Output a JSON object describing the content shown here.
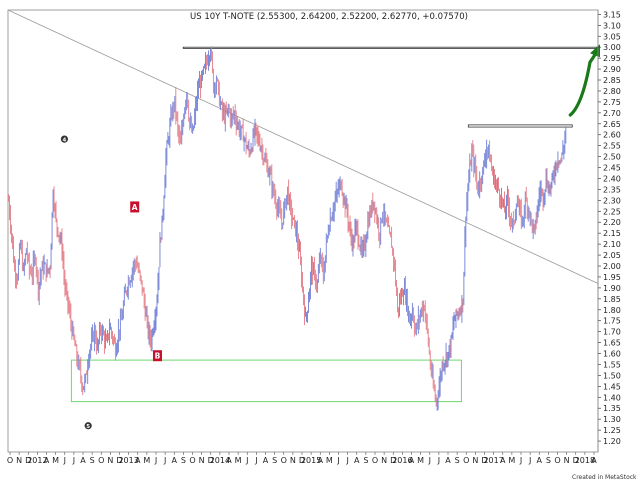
{
  "chart_data": {
    "type": "ohlc",
    "title": "US 10Y T-NOTE (2.55300, 2.64200, 2.52200, 2.62770, +0.07570)",
    "credit": "Created in MetaStock",
    "y_axis": {
      "position": "right",
      "ylim": [
        1.15,
        3.17
      ],
      "ticks": [
        3.15,
        3.1,
        3.05,
        3.0,
        2.95,
        2.9,
        2.85,
        2.8,
        2.75,
        2.7,
        2.65,
        2.6,
        2.55,
        2.5,
        2.45,
        2.4,
        2.35,
        2.3,
        2.25,
        2.2,
        2.15,
        2.1,
        2.05,
        2.0,
        1.95,
        1.9,
        1.85,
        1.8,
        1.75,
        1.7,
        1.65,
        1.6,
        1.55,
        1.5,
        1.45,
        1.4,
        1.35,
        1.3,
        1.25,
        1.2
      ],
      "tick_labels": [
        "3.15",
        "3.10",
        "3.05",
        "3.00",
        "2.95",
        "2.90",
        "2.85",
        "2.80",
        "2.75",
        "2.70",
        "2.65",
        "2.60",
        "2.55",
        "2.50",
        "2.45",
        "2.40",
        "2.35",
        "2.30",
        "2.25",
        "2.20",
        "2.15",
        "2.10",
        "2.05",
        "2.00",
        "1.95",
        "1.90",
        "1.85",
        "1.80",
        "1.75",
        "1.70",
        "1.65",
        "1.60",
        "1.55",
        "1.50",
        "1.45",
        "1.40",
        "1.35",
        "1.30",
        "1.25",
        "1.20"
      ]
    },
    "x_axis_labels": [
      "O",
      "N",
      "D",
      "2012",
      "A",
      "M",
      "J",
      "J",
      "A",
      "S",
      "O",
      "N",
      "D",
      "2013",
      "A",
      "M",
      "J",
      "J",
      "A",
      "S",
      "O",
      "N",
      "D",
      "2014",
      "A",
      "M",
      "J",
      "J",
      "A",
      "S",
      "O",
      "N",
      "D",
      "2015",
      "A",
      "M",
      "J",
      "J",
      "A",
      "S",
      "O",
      "N",
      "D",
      "2016",
      "A",
      "M",
      "J",
      "J",
      "A",
      "S",
      "O",
      "N",
      "D",
      "2017",
      "A",
      "M",
      "J",
      "J",
      "A",
      "S",
      "O",
      "N",
      "D",
      "2018",
      "A"
    ],
    "series": [
      {
        "points": [
          [
            0,
            2.3
          ],
          [
            3,
            2.15
          ],
          [
            6,
            1.98
          ],
          [
            9,
            1.96
          ],
          [
            12,
            2.1
          ],
          [
            15,
            1.97
          ],
          [
            18,
            2.08
          ],
          [
            21,
            1.98
          ],
          [
            24,
            1.97
          ],
          [
            27,
            2.05
          ],
          [
            30,
            1.9
          ],
          [
            33,
            1.98
          ],
          [
            36,
            2.0
          ],
          [
            39,
            1.97
          ],
          [
            42,
            2.0
          ],
          [
            45,
            2.35
          ],
          [
            48,
            2.2
          ],
          [
            51,
            2.15
          ],
          [
            54,
            2.08
          ],
          [
            57,
            1.9
          ],
          [
            60,
            1.83
          ],
          [
            63,
            1.74
          ],
          [
            66,
            1.66
          ],
          [
            69,
            1.58
          ],
          [
            72,
            1.52
          ],
          [
            75,
            1.45
          ],
          [
            78,
            1.48
          ],
          [
            81,
            1.6
          ],
          [
            84,
            1.65
          ],
          [
            87,
            1.7
          ],
          [
            90,
            1.62
          ],
          [
            93,
            1.72
          ],
          [
            96,
            1.68
          ],
          [
            99,
            1.64
          ],
          [
            102,
            1.72
          ],
          [
            105,
            1.68
          ],
          [
            108,
            1.62
          ],
          [
            111,
            1.7
          ],
          [
            114,
            1.75
          ],
          [
            117,
            1.85
          ],
          [
            120,
            1.92
          ],
          [
            123,
            1.95
          ],
          [
            126,
            2.0
          ],
          [
            129,
            2.02
          ],
          [
            132,
            1.96
          ],
          [
            135,
            1.9
          ],
          [
            138,
            1.8
          ],
          [
            141,
            1.7
          ],
          [
            144,
            1.66
          ],
          [
            147,
            1.75
          ],
          [
            150,
            1.85
          ],
          [
            153,
            2.1
          ],
          [
            156,
            2.25
          ],
          [
            159,
            2.5
          ],
          [
            162,
            2.6
          ],
          [
            165,
            2.7
          ],
          [
            168,
            2.75
          ],
          [
            171,
            2.62
          ],
          [
            174,
            2.55
          ],
          [
            177,
            2.7
          ],
          [
            180,
            2.8
          ],
          [
            183,
            2.65
          ],
          [
            186,
            2.6
          ],
          [
            189,
            2.72
          ],
          [
            192,
            2.82
          ],
          [
            195,
            2.85
          ],
          [
            198,
            2.9
          ],
          [
            201,
            2.95
          ],
          [
            204,
            3.0
          ],
          [
            207,
            2.82
          ],
          [
            210,
            2.86
          ],
          [
            213,
            2.76
          ],
          [
            216,
            2.7
          ],
          [
            219,
            2.68
          ],
          [
            222,
            2.72
          ],
          [
            225,
            2.67
          ],
          [
            228,
            2.7
          ],
          [
            231,
            2.65
          ],
          [
            234,
            2.62
          ],
          [
            237,
            2.6
          ],
          [
            240,
            2.55
          ],
          [
            243,
            2.52
          ],
          [
            246,
            2.56
          ],
          [
            249,
            2.62
          ],
          [
            252,
            2.58
          ],
          [
            255,
            2.55
          ],
          [
            258,
            2.5
          ],
          [
            261,
            2.45
          ],
          [
            264,
            2.42
          ],
          [
            267,
            2.35
          ],
          [
            270,
            2.3
          ],
          [
            273,
            2.25
          ],
          [
            276,
            2.2
          ],
          [
            279,
            2.27
          ],
          [
            282,
            2.35
          ],
          [
            285,
            2.25
          ],
          [
            288,
            2.2
          ],
          [
            291,
            2.15
          ],
          [
            294,
            2.05
          ],
          [
            297,
            1.9
          ],
          [
            300,
            1.75
          ],
          [
            303,
            1.85
          ],
          [
            306,
            2.0
          ],
          [
            309,
            1.95
          ],
          [
            312,
            1.92
          ],
          [
            315,
            2.05
          ],
          [
            318,
            1.95
          ],
          [
            321,
            2.1
          ],
          [
            324,
            2.2
          ],
          [
            327,
            2.25
          ],
          [
            330,
            2.3
          ],
          [
            333,
            2.35
          ],
          [
            336,
            2.38
          ],
          [
            339,
            2.3
          ],
          [
            342,
            2.25
          ],
          [
            345,
            2.15
          ],
          [
            348,
            2.1
          ],
          [
            351,
            2.18
          ],
          [
            354,
            2.12
          ],
          [
            357,
            2.05
          ],
          [
            360,
            2.1
          ],
          [
            363,
            2.2
          ],
          [
            366,
            2.25
          ],
          [
            369,
            2.3
          ],
          [
            372,
            2.22
          ],
          [
            375,
            2.15
          ],
          [
            378,
            2.26
          ],
          [
            381,
            2.2
          ],
          [
            384,
            2.15
          ],
          [
            387,
            2.1
          ],
          [
            390,
            2.0
          ],
          [
            393,
            1.8
          ],
          [
            396,
            1.85
          ],
          [
            399,
            1.9
          ],
          [
            402,
            1.85
          ],
          [
            405,
            1.75
          ],
          [
            408,
            1.8
          ],
          [
            411,
            1.7
          ],
          [
            414,
            1.75
          ],
          [
            417,
            1.8
          ],
          [
            420,
            1.82
          ],
          [
            423,
            1.7
          ],
          [
            426,
            1.55
          ],
          [
            429,
            1.45
          ],
          [
            432,
            1.38
          ],
          [
            435,
            1.45
          ],
          [
            438,
            1.55
          ],
          [
            441,
            1.58
          ],
          [
            444,
            1.6
          ],
          [
            447,
            1.65
          ],
          [
            450,
            1.75
          ],
          [
            453,
            1.78
          ],
          [
            456,
            1.8
          ],
          [
            459,
            1.85
          ],
          [
            462,
            2.25
          ],
          [
            465,
            2.4
          ],
          [
            468,
            2.52
          ],
          [
            471,
            2.45
          ],
          [
            474,
            2.35
          ],
          [
            477,
            2.4
          ],
          [
            480,
            2.45
          ],
          [
            483,
            2.55
          ],
          [
            486,
            2.5
          ],
          [
            489,
            2.42
          ],
          [
            492,
            2.38
          ],
          [
            495,
            2.35
          ],
          [
            498,
            2.3
          ],
          [
            501,
            2.25
          ],
          [
            504,
            2.3
          ],
          [
            507,
            2.22
          ],
          [
            510,
            2.18
          ],
          [
            513,
            2.3
          ],
          [
            516,
            2.25
          ],
          [
            519,
            2.2
          ],
          [
            522,
            2.3
          ],
          [
            525,
            2.27
          ],
          [
            528,
            2.2
          ],
          [
            531,
            2.15
          ],
          [
            534,
            2.25
          ],
          [
            537,
            2.35
          ],
          [
            540,
            2.32
          ],
          [
            543,
            2.4
          ],
          [
            546,
            2.35
          ],
          [
            549,
            2.38
          ],
          [
            552,
            2.45
          ],
          [
            555,
            2.5
          ],
          [
            558,
            2.48
          ],
          [
            561,
            2.55
          ],
          [
            563,
            2.63
          ]
        ]
      }
    ],
    "trendline": {
      "from": [
        0,
        3.17
      ],
      "to": [
        596,
        1.92
      ]
    },
    "resistance_boxes": [
      {
        "x": [
          177,
          596
        ],
        "y": [
          2.995,
          3.0
        ]
      },
      {
        "x": [
          465,
          570
        ],
        "y": [
          2.635,
          2.645
        ]
      }
    ],
    "support_box": {
      "x": [
        64,
        458
      ],
      "y": [
        1.38,
        1.57
      ]
    },
    "forecast_arrow": {
      "from": [
        568,
        2.69
      ],
      "to": [
        597,
        3.0
      ]
    },
    "annotations": [
      {
        "label": "4",
        "shape": "circle",
        "x": 57,
        "y": 2.58
      },
      {
        "label": "A",
        "shape": "box",
        "x": 128,
        "y": 2.27
      },
      {
        "label": "B",
        "shape": "box",
        "x": 151,
        "y": 1.59
      },
      {
        "label": "5",
        "shape": "circle",
        "x": 81,
        "y": 1.27
      }
    ]
  }
}
